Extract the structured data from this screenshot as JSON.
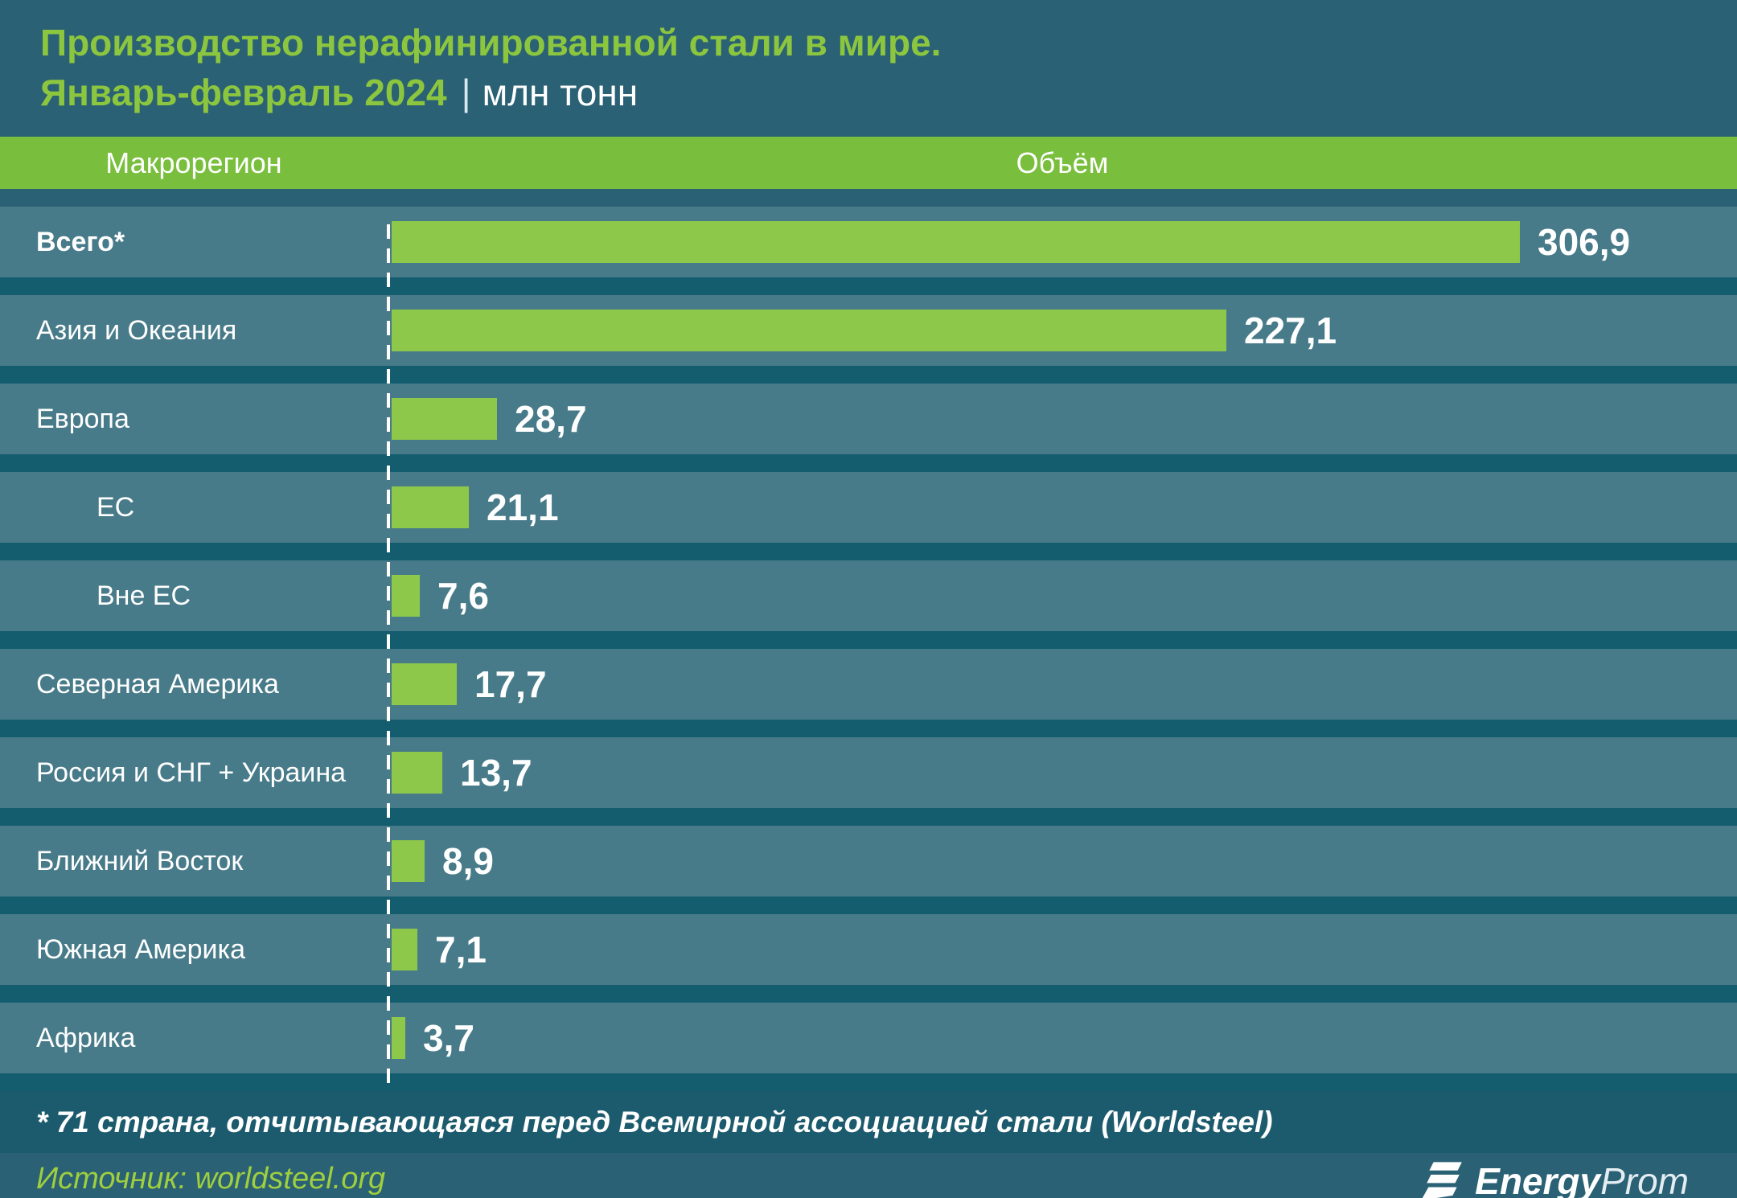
{
  "title": {
    "line1": "Производство нерафинированной стали в мире.",
    "line2_period": "Январь-февраль 2024",
    "separator": "|",
    "unit": "млн тонн"
  },
  "table_header": {
    "region_label": "Макрорегион",
    "volume_label": "Объём"
  },
  "chart_data": {
    "type": "bar",
    "orientation": "horizontal",
    "title": "Производство нерафинированной стали в мире. Январь-февраль 2024",
    "unit": "млн тонн",
    "categories": [
      "Всего*",
      "Азия и Океания",
      "Европа",
      "ЕС",
      "Вне ЕС",
      "Северная Америка",
      "Россия и СНГ + Украина",
      "Ближний Восток",
      "Южная Америка",
      "Африка"
    ],
    "values": [
      306.9,
      227.1,
      28.7,
      21.1,
      7.6,
      17.7,
      13.7,
      8.9,
      7.1,
      3.7
    ],
    "value_labels": [
      "306,9",
      "227,1",
      "28,7",
      "21,1",
      "7,6",
      "17,7",
      "13,7",
      "8,9",
      "7,1",
      "3,7"
    ],
    "indented": [
      false,
      false,
      false,
      true,
      true,
      false,
      false,
      false,
      false,
      false
    ],
    "emphasized": [
      true,
      false,
      false,
      false,
      false,
      false,
      false,
      false,
      false,
      false
    ],
    "xlim": [
      0,
      330
    ],
    "grid": "off",
    "legend": "none",
    "bar_color": "#8dc84a",
    "baseline_style": "white-dashed"
  },
  "footnote": "* 71 страна, отчитывающаяся перед Всемирной ассоциацией стали (Worldsteel)",
  "source": "Источник: worldsteel.org",
  "logo": {
    "brand_bold": "Energy",
    "brand_light": "Prom"
  },
  "colors": {
    "background": "#2a6174",
    "header_band_green": "#79bf3d",
    "row_band": "#487b89",
    "row_gap": "#135d6e",
    "bar_green": "#8dc84a",
    "title_green": "#8cc63f",
    "source_green": "#9fce3f",
    "footnote_band": "#1c5b6d",
    "bottom_strip": "#1d4f63",
    "text_white": "#ffffff"
  }
}
